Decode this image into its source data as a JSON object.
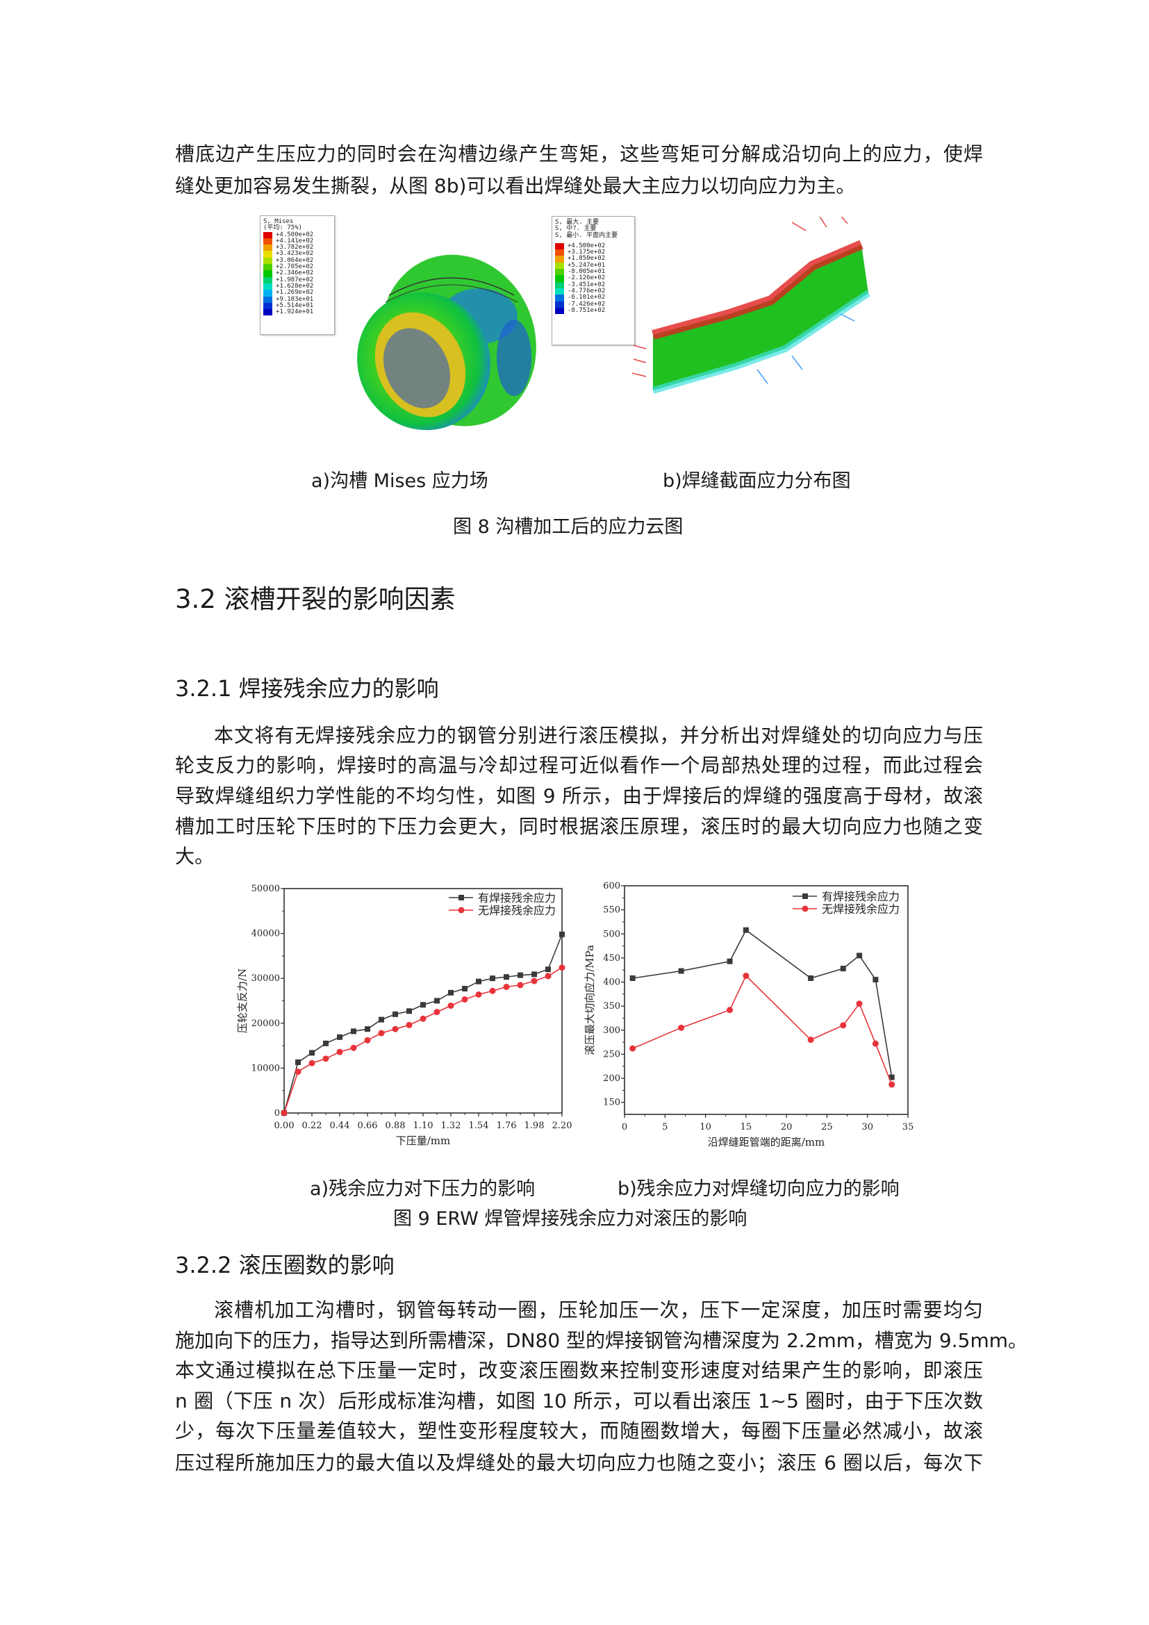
{
  "intro_paragraph": {
    "lines": [
      "槽底边产生压应力的同时会在沟槽边缘产生弯矩，这些弯矩可分解成沿切向上的应力，使焊",
      "缝处更加容易发生撕裂，从图 8b)可以看出焊缝处最大主应力以切向应力为主。"
    ]
  },
  "figure8": {
    "legend_a": {
      "title_lines": [
        "S, Mises",
        "(平均: 75%)"
      ],
      "values": [
        "+4.500e+02",
        "+4.141e+02",
        "+3.782e+02",
        "+3.423e+02",
        "+3.064e+02",
        "+2.705e+02",
        "+2.346e+02",
        "+1.987e+02",
        "+1.628e+02",
        "+1.269e+02",
        "+9.103e+01",
        "+5.514e+01",
        "+1.924e+01"
      ]
    },
    "legend_b": {
      "title_lines": [
        "S, 最大. 主要",
        "S, 中?. 主要",
        "S, 最小. 平面内主要"
      ],
      "values": [
        "+4.500e+02",
        "+3.175e+02",
        "+1.850e+02",
        "+5.247e+01",
        "-8.005e+01",
        "-2.126e+02",
        "-3.451e+02",
        "-4.776e+02",
        "-6.101e+02",
        "-7.426e+02",
        "-8.751e+02"
      ]
    },
    "contour_colors": [
      "#e00000",
      "#f05000",
      "#f0a000",
      "#e8e000",
      "#a8e000",
      "#50d000",
      "#00c800",
      "#00d070",
      "#00e0c0",
      "#00b0f0",
      "#0070e0",
      "#0030d0",
      "#0000c0"
    ],
    "caption_a": "a)沟槽 Mises 应力场",
    "caption_b": "b)焊缝截面应力分布图",
    "caption": "图 8  沟槽加工后的应力云图"
  },
  "section_3_2": {
    "title": "3.2 滚槽开裂的影响因素"
  },
  "section_3_2_1": {
    "title": "3.2.1 焊接残余应力的影响",
    "lines": [
      "本文将有无焊接残余应力的钢管分别进行滚压模拟，并分析出对焊缝处的切向应力与压",
      "轮支反力的影响，焊接时的高温与冷却过程可近似看作一个局部热处理的过程，而此过程会",
      "导致焊缝组织力学性能的不均匀性，如图 9 所示，由于焊接后的焊缝的强度高于母材，故滚",
      "槽加工时压轮下压时的下压力会更大，同时根据滚压原理，滚压时的最大切向应力也随之变",
      "大。"
    ]
  },
  "chart_data": [
    {
      "type": "line",
      "title": "",
      "xlabel": "下压量/mm",
      "ylabel": "压轮支反力/N",
      "xlim": [
        0,
        2.2
      ],
      "ylim": [
        0,
        50000
      ],
      "x_ticks": [
        "0.00",
        "0.22",
        "0.44",
        "0.66",
        "0.88",
        "1.10",
        "1.32",
        "1.54",
        "1.76",
        "1.98",
        "2.20"
      ],
      "y_ticks": [
        "0",
        "10000",
        "20000",
        "30000",
        "40000",
        "50000"
      ],
      "grid": false,
      "legend_position": "top-right",
      "x": [
        0,
        0.11,
        0.22,
        0.33,
        0.44,
        0.55,
        0.66,
        0.77,
        0.88,
        0.99,
        1.1,
        1.21,
        1.32,
        1.43,
        1.54,
        1.65,
        1.76,
        1.87,
        1.98,
        2.09,
        2.2
      ],
      "series": [
        {
          "name": "有焊接残余应力",
          "color": "#3a3a3a",
          "marker": "square",
          "values": [
            0,
            11300,
            13400,
            15500,
            16900,
            18200,
            18700,
            20800,
            22000,
            22700,
            24100,
            25000,
            26800,
            27700,
            29300,
            30000,
            30300,
            30700,
            30900,
            32000,
            39800
          ]
        },
        {
          "name": "无焊接残余应力",
          "color": "#e8333a",
          "marker": "circle",
          "values": [
            0,
            9200,
            11100,
            12100,
            13600,
            14500,
            16200,
            17800,
            18700,
            19600,
            21000,
            22500,
            23900,
            25300,
            26400,
            27200,
            28100,
            28500,
            29400,
            30500,
            32400
          ]
        }
      ]
    },
    {
      "type": "line",
      "title": "",
      "xlabel": "沿焊缝距管端的距离/mm",
      "ylabel": "滚压最大切向应力/MPa",
      "xlim": [
        0,
        35
      ],
      "ylim": [
        125,
        600
      ],
      "x_ticks": [
        "0",
        "5",
        "10",
        "15",
        "20",
        "25",
        "30",
        "35"
      ],
      "y_ticks": [
        "150",
        "200",
        "250",
        "300",
        "350",
        "400",
        "450",
        "500",
        "550",
        "600"
      ],
      "grid": false,
      "legend_position": "top-right",
      "x": [
        1,
        7,
        13,
        15,
        23,
        27,
        29,
        31,
        33
      ],
      "series": [
        {
          "name": "有焊接残余应力",
          "color": "#3a3a3a",
          "marker": "square",
          "values": [
            408,
            423,
            443,
            508,
            408,
            428,
            455,
            405,
            202
          ]
        },
        {
          "name": "无焊接残余应力",
          "color": "#e8333a",
          "marker": "circle",
          "values": [
            262,
            305,
            342,
            413,
            280,
            310,
            355,
            272,
            187
          ]
        }
      ]
    }
  ],
  "figure9": {
    "caption_a": "a)残余应力对下压力的影响",
    "caption_b": "b)残余应力对焊缝切向应力的影响",
    "caption": "图 9 ERW 焊管焊接残余应力对滚压的影响"
  },
  "section_3_2_2": {
    "title": "3.2.2  滚压圈数的影响",
    "lines": [
      "滚槽机加工沟槽时，钢管每转动一圈，压轮加压一次，压下一定深度，加压时需要均匀",
      "施加向下的压力，指导达到所需槽深，DN80 型的焊接钢管沟槽深度为 2.2mm，槽宽为 9.5mm。",
      "本文通过模拟在总下压量一定时，改变滚压圈数来控制变形速度对结果产生的影响，即滚压",
      "n 圈（下压 n 次）后形成标准沟槽，如图 10 所示，可以看出滚压 1~5 圈时，由于下压次数",
      "少，每次下压量差值较大，塑性变形程度较大，而随圈数增大，每圈下压量必然减小，故滚",
      "压过程所施加压力的最大值以及焊缝处的最大切向应力也随之变小；滚压 6 圈以后，每次下"
    ]
  }
}
